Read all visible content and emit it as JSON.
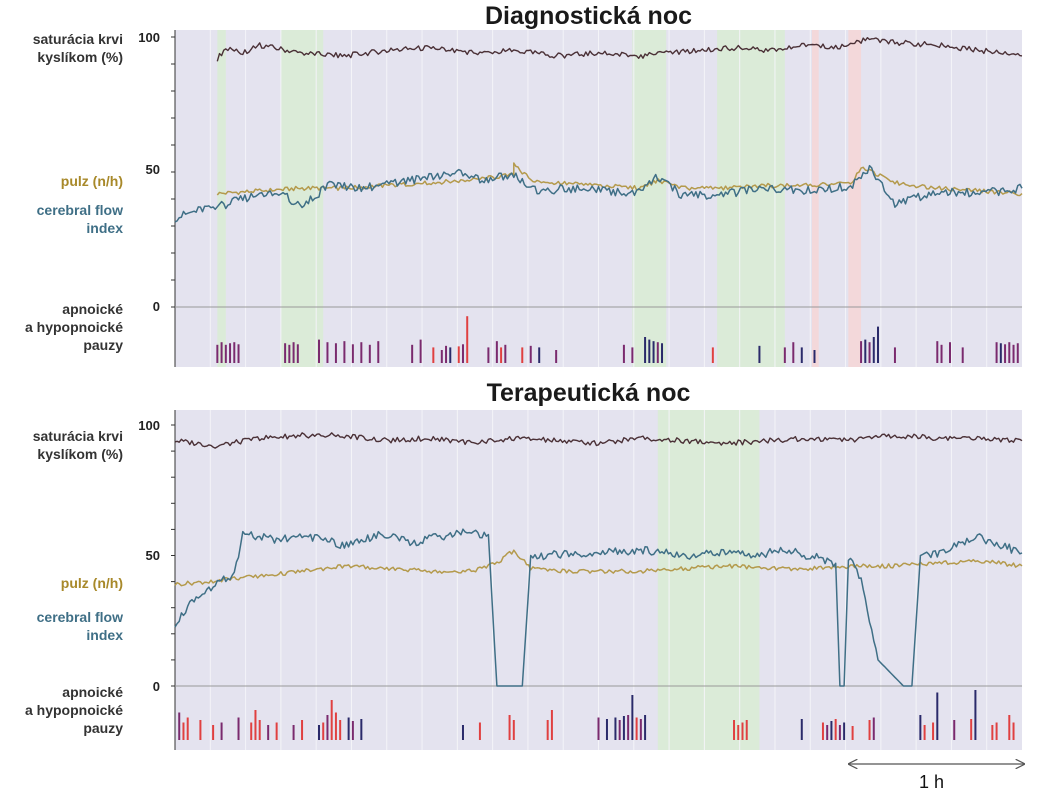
{
  "panels": [
    {
      "id": "diag",
      "title": "Diagnostická noc",
      "spo2_label": [
        "saturácia krvi",
        "kyslíkom (%)"
      ],
      "pulse_label": "pulz (n/h)",
      "cfi_label": [
        "cerebral flow",
        "index"
      ],
      "apnea_label": [
        "apnoické",
        "a hypopnoické",
        "pauzy"
      ],
      "ticks": [
        "100",
        "50",
        "0"
      ]
    },
    {
      "id": "ther",
      "title": "Terapeutická noc",
      "spo2_label": [
        "saturácia krvi",
        "kyslíkom (%)"
      ],
      "pulse_label": "pulz (n/h)",
      "cfi_label": [
        "cerebral flow",
        "index"
      ],
      "apnea_label": [
        "apnoické",
        "a hypopnoické",
        "pauzy"
      ],
      "ticks": [
        "100",
        "50",
        "0"
      ]
    }
  ],
  "scale_bar_label": "1 h",
  "colors": {
    "plot_bg": "#e4e3ef",
    "grid": "#f4f4f8",
    "spo2": "#4a3036",
    "pulse": "#b49a4c",
    "cfi": "#3f6f86",
    "bar_purple": "#7a2a6e",
    "bar_red": "#e04040",
    "bar_navy": "#2a2a6a",
    "band_green": "#d9ecd3",
    "band_red": "#f6d6d6"
  },
  "chart_data": [
    {
      "type": "line",
      "title": "Diagnostická noc",
      "x_unit": "fraction of night (0-1)",
      "y_range": [
        0,
        100
      ],
      "bands": [
        {
          "from": 0.05,
          "to": 0.06,
          "color": "green"
        },
        {
          "from": 0.125,
          "to": 0.175,
          "color": "green"
        },
        {
          "from": 0.54,
          "to": 0.58,
          "color": "green"
        },
        {
          "from": 0.64,
          "to": 0.72,
          "color": "green"
        },
        {
          "from": 0.752,
          "to": 0.76,
          "color": "red"
        },
        {
          "from": 0.795,
          "to": 0.81,
          "color": "red"
        }
      ],
      "series": [
        {
          "name": "saturácia krvi kyslíkom (%)",
          "key": "spo2",
          "x": [
            0.05,
            0.06,
            0.08,
            0.1,
            0.15,
            0.2,
            0.25,
            0.3,
            0.33,
            0.36,
            0.4,
            0.45,
            0.5,
            0.55,
            0.58,
            0.62,
            0.66,
            0.7,
            0.72,
            0.75,
            0.78,
            0.8,
            0.82,
            0.85,
            0.9,
            0.95,
            0.99,
            1.0
          ],
          "y": [
            92,
            96,
            94,
            97,
            94,
            93,
            95,
            96,
            95,
            94,
            95,
            93,
            94,
            93,
            94,
            95,
            96,
            95,
            96,
            97,
            96,
            98,
            99,
            98,
            97,
            95,
            94,
            93
          ]
        },
        {
          "name": "pulz (n/h)",
          "key": "pulse",
          "x": [
            0.05,
            0.1,
            0.15,
            0.2,
            0.25,
            0.3,
            0.35,
            0.4,
            0.4,
            0.42,
            0.45,
            0.5,
            0.55,
            0.57,
            0.6,
            0.65,
            0.7,
            0.75,
            0.8,
            0.81,
            0.85,
            0.9,
            0.95,
            1.0
          ],
          "y": [
            42,
            43,
            44,
            44,
            45,
            46,
            47,
            49,
            53,
            47,
            46,
            45,
            44,
            47,
            44,
            44,
            45,
            45,
            46,
            52,
            46,
            44,
            43,
            42
          ]
        },
        {
          "name": "cerebral flow index",
          "key": "cfi",
          "x": [
            0,
            0.04,
            0.06,
            0.1,
            0.13,
            0.15,
            0.18,
            0.22,
            0.26,
            0.3,
            0.33,
            0.36,
            0.4,
            0.43,
            0.46,
            0.5,
            0.54,
            0.57,
            0.6,
            0.65,
            0.7,
            0.75,
            0.8,
            0.82,
            0.85,
            0.9,
            0.95,
            1.0
          ],
          "y": [
            33,
            37,
            38,
            42,
            41,
            37,
            45,
            44,
            46,
            48,
            50,
            47,
            49,
            42,
            44,
            43,
            42,
            48,
            41,
            42,
            44,
            43,
            45,
            52,
            38,
            43,
            42,
            44
          ]
        }
      ],
      "events": [
        {
          "x": 0.05,
          "h": 0.35,
          "c": "purple"
        },
        {
          "x": 0.055,
          "h": 0.4,
          "c": "purple"
        },
        {
          "x": 0.06,
          "h": 0.35,
          "c": "purple"
        },
        {
          "x": 0.065,
          "h": 0.38,
          "c": "purple"
        },
        {
          "x": 0.07,
          "h": 0.4,
          "c": "purple"
        },
        {
          "x": 0.075,
          "h": 0.36,
          "c": "purple"
        },
        {
          "x": 0.13,
          "h": 0.38,
          "c": "purple"
        },
        {
          "x": 0.135,
          "h": 0.35,
          "c": "purple"
        },
        {
          "x": 0.14,
          "h": 0.4,
          "c": "purple"
        },
        {
          "x": 0.145,
          "h": 0.36,
          "c": "purple"
        },
        {
          "x": 0.17,
          "h": 0.45,
          "c": "purple"
        },
        {
          "x": 0.18,
          "h": 0.4,
          "c": "purple"
        },
        {
          "x": 0.19,
          "h": 0.38,
          "c": "purple"
        },
        {
          "x": 0.2,
          "h": 0.42,
          "c": "purple"
        },
        {
          "x": 0.21,
          "h": 0.36,
          "c": "purple"
        },
        {
          "x": 0.22,
          "h": 0.4,
          "c": "purple"
        },
        {
          "x": 0.23,
          "h": 0.35,
          "c": "purple"
        },
        {
          "x": 0.24,
          "h": 0.42,
          "c": "purple"
        },
        {
          "x": 0.28,
          "h": 0.35,
          "c": "purple"
        },
        {
          "x": 0.29,
          "h": 0.45,
          "c": "purple"
        },
        {
          "x": 0.305,
          "h": 0.3,
          "c": "red"
        },
        {
          "x": 0.315,
          "h": 0.25,
          "c": "purple"
        },
        {
          "x": 0.32,
          "h": 0.33,
          "c": "purple"
        },
        {
          "x": 0.325,
          "h": 0.3,
          "c": "navy"
        },
        {
          "x": 0.335,
          "h": 0.32,
          "c": "red"
        },
        {
          "x": 0.34,
          "h": 0.36,
          "c": "purple"
        },
        {
          "x": 0.345,
          "h": 0.9,
          "c": "red"
        },
        {
          "x": 0.37,
          "h": 0.3,
          "c": "purple"
        },
        {
          "x": 0.38,
          "h": 0.42,
          "c": "purple"
        },
        {
          "x": 0.385,
          "h": 0.3,
          "c": "red"
        },
        {
          "x": 0.39,
          "h": 0.35,
          "c": "purple"
        },
        {
          "x": 0.41,
          "h": 0.3,
          "c": "red"
        },
        {
          "x": 0.42,
          "h": 0.33,
          "c": "purple"
        },
        {
          "x": 0.43,
          "h": 0.3,
          "c": "navy"
        },
        {
          "x": 0.45,
          "h": 0.25,
          "c": "purple"
        },
        {
          "x": 0.53,
          "h": 0.35,
          "c": "purple"
        },
        {
          "x": 0.54,
          "h": 0.3,
          "c": "purple"
        },
        {
          "x": 0.555,
          "h": 0.5,
          "c": "navy"
        },
        {
          "x": 0.56,
          "h": 0.45,
          "c": "navy"
        },
        {
          "x": 0.565,
          "h": 0.42,
          "c": "navy"
        },
        {
          "x": 0.57,
          "h": 0.4,
          "c": "purple"
        },
        {
          "x": 0.575,
          "h": 0.38,
          "c": "navy"
        },
        {
          "x": 0.635,
          "h": 0.3,
          "c": "red"
        },
        {
          "x": 0.69,
          "h": 0.33,
          "c": "navy"
        },
        {
          "x": 0.72,
          "h": 0.3,
          "c": "purple"
        },
        {
          "x": 0.73,
          "h": 0.4,
          "c": "purple"
        },
        {
          "x": 0.74,
          "h": 0.3,
          "c": "navy"
        },
        {
          "x": 0.755,
          "h": 0.25,
          "c": "navy"
        },
        {
          "x": 0.81,
          "h": 0.42,
          "c": "purple"
        },
        {
          "x": 0.815,
          "h": 0.45,
          "c": "navy"
        },
        {
          "x": 0.82,
          "h": 0.4,
          "c": "purple"
        },
        {
          "x": 0.825,
          "h": 0.5,
          "c": "navy"
        },
        {
          "x": 0.83,
          "h": 0.7,
          "c": "navy"
        },
        {
          "x": 0.85,
          "h": 0.3,
          "c": "purple"
        },
        {
          "x": 0.9,
          "h": 0.42,
          "c": "purple"
        },
        {
          "x": 0.905,
          "h": 0.35,
          "c": "purple"
        },
        {
          "x": 0.915,
          "h": 0.4,
          "c": "purple"
        },
        {
          "x": 0.93,
          "h": 0.3,
          "c": "purple"
        },
        {
          "x": 0.97,
          "h": 0.4,
          "c": "purple"
        },
        {
          "x": 0.975,
          "h": 0.38,
          "c": "navy"
        },
        {
          "x": 0.98,
          "h": 0.36,
          "c": "purple"
        },
        {
          "x": 0.985,
          "h": 0.4,
          "c": "purple"
        },
        {
          "x": 0.99,
          "h": 0.35,
          "c": "purple"
        },
        {
          "x": 0.995,
          "h": 0.38,
          "c": "purple"
        }
      ]
    },
    {
      "type": "line",
      "title": "Terapeutická noc",
      "x_unit": "fraction of night (0-1)",
      "y_range": [
        0,
        100
      ],
      "bands": [
        {
          "from": 0.57,
          "to": 0.69,
          "color": "green"
        }
      ],
      "series": [
        {
          "name": "saturácia krvi kyslíkom (%)",
          "key": "spo2",
          "x": [
            0,
            0.05,
            0.1,
            0.15,
            0.2,
            0.25,
            0.3,
            0.35,
            0.4,
            0.45,
            0.5,
            0.55,
            0.6,
            0.65,
            0.7,
            0.75,
            0.8,
            0.85,
            0.9,
            0.95,
            1.0
          ],
          "y": [
            94,
            92,
            95,
            96,
            96,
            94,
            95,
            93,
            95,
            94,
            93,
            95,
            94,
            93,
            94,
            95,
            94,
            96,
            95,
            95,
            94
          ]
        },
        {
          "name": "pulz (n/h)",
          "key": "pulse",
          "x": [
            0,
            0.04,
            0.06,
            0.1,
            0.15,
            0.2,
            0.25,
            0.3,
            0.35,
            0.38,
            0.4,
            0.42,
            0.46,
            0.5,
            0.55,
            0.6,
            0.65,
            0.7,
            0.75,
            0.8,
            0.85,
            0.9,
            0.95,
            1.0
          ],
          "y": [
            39,
            40,
            41,
            42,
            44,
            46,
            45,
            44,
            44,
            47,
            52,
            45,
            44,
            44,
            44,
            45,
            46,
            45,
            45,
            46,
            46,
            47,
            48,
            46
          ]
        },
        {
          "name": "cerebral flow index",
          "key": "cfi",
          "x": [
            0,
            0.02,
            0.05,
            0.07,
            0.08,
            0.12,
            0.16,
            0.2,
            0.24,
            0.28,
            0.34,
            0.37,
            0.38,
            0.39,
            0.4,
            0.405,
            0.41,
            0.42,
            0.44,
            0.48,
            0.55,
            0.6,
            0.64,
            0.68,
            0.72,
            0.76,
            0.78,
            0.785,
            0.79,
            0.795,
            0.8,
            0.81,
            0.83,
            0.86,
            0.87,
            0.88,
            0.9,
            0.95,
            1.0
          ],
          "y": [
            24,
            32,
            40,
            42,
            58,
            56,
            57,
            54,
            58,
            55,
            59,
            58,
            0,
            0,
            0,
            0,
            0,
            49,
            50,
            51,
            52,
            50,
            51,
            50,
            52,
            49,
            47,
            0,
            0,
            47,
            48,
            40,
            10,
            0,
            0,
            49,
            51,
            57,
            51
          ]
        }
      ],
      "events": [
        {
          "x": 0.005,
          "h": 0.55,
          "c": "purple"
        },
        {
          "x": 0.01,
          "h": 0.35,
          "c": "red"
        },
        {
          "x": 0.015,
          "h": 0.45,
          "c": "red"
        },
        {
          "x": 0.03,
          "h": 0.4,
          "c": "red"
        },
        {
          "x": 0.045,
          "h": 0.3,
          "c": "red"
        },
        {
          "x": 0.055,
          "h": 0.35,
          "c": "purple"
        },
        {
          "x": 0.075,
          "h": 0.45,
          "c": "purple"
        },
        {
          "x": 0.09,
          "h": 0.35,
          "c": "red"
        },
        {
          "x": 0.095,
          "h": 0.6,
          "c": "red"
        },
        {
          "x": 0.1,
          "h": 0.4,
          "c": "red"
        },
        {
          "x": 0.11,
          "h": 0.3,
          "c": "purple"
        },
        {
          "x": 0.12,
          "h": 0.35,
          "c": "red"
        },
        {
          "x": 0.14,
          "h": 0.3,
          "c": "purple"
        },
        {
          "x": 0.15,
          "h": 0.4,
          "c": "red"
        },
        {
          "x": 0.17,
          "h": 0.3,
          "c": "navy"
        },
        {
          "x": 0.175,
          "h": 0.35,
          "c": "red"
        },
        {
          "x": 0.18,
          "h": 0.5,
          "c": "purple"
        },
        {
          "x": 0.185,
          "h": 0.8,
          "c": "red"
        },
        {
          "x": 0.19,
          "h": 0.55,
          "c": "red"
        },
        {
          "x": 0.195,
          "h": 0.4,
          "c": "red"
        },
        {
          "x": 0.205,
          "h": 0.45,
          "c": "navy"
        },
        {
          "x": 0.21,
          "h": 0.38,
          "c": "purple"
        },
        {
          "x": 0.22,
          "h": 0.42,
          "c": "navy"
        },
        {
          "x": 0.34,
          "h": 0.3,
          "c": "navy"
        },
        {
          "x": 0.36,
          "h": 0.35,
          "c": "red"
        },
        {
          "x": 0.395,
          "h": 0.5,
          "c": "red"
        },
        {
          "x": 0.4,
          "h": 0.4,
          "c": "red"
        },
        {
          "x": 0.44,
          "h": 0.4,
          "c": "red"
        },
        {
          "x": 0.445,
          "h": 0.6,
          "c": "red"
        },
        {
          "x": 0.5,
          "h": 0.45,
          "c": "purple"
        },
        {
          "x": 0.51,
          "h": 0.42,
          "c": "navy"
        },
        {
          "x": 0.52,
          "h": 0.45,
          "c": "navy"
        },
        {
          "x": 0.525,
          "h": 0.4,
          "c": "purple"
        },
        {
          "x": 0.53,
          "h": 0.48,
          "c": "navy"
        },
        {
          "x": 0.535,
          "h": 0.5,
          "c": "purple"
        },
        {
          "x": 0.54,
          "h": 0.9,
          "c": "navy"
        },
        {
          "x": 0.545,
          "h": 0.45,
          "c": "red"
        },
        {
          "x": 0.55,
          "h": 0.42,
          "c": "purple"
        },
        {
          "x": 0.555,
          "h": 0.5,
          "c": "navy"
        },
        {
          "x": 0.66,
          "h": 0.4,
          "c": "red"
        },
        {
          "x": 0.665,
          "h": 0.3,
          "c": "red"
        },
        {
          "x": 0.67,
          "h": 0.35,
          "c": "red"
        },
        {
          "x": 0.675,
          "h": 0.4,
          "c": "red"
        },
        {
          "x": 0.74,
          "h": 0.42,
          "c": "navy"
        },
        {
          "x": 0.765,
          "h": 0.35,
          "c": "red"
        },
        {
          "x": 0.77,
          "h": 0.3,
          "c": "purple"
        },
        {
          "x": 0.775,
          "h": 0.38,
          "c": "navy"
        },
        {
          "x": 0.78,
          "h": 0.42,
          "c": "red"
        },
        {
          "x": 0.785,
          "h": 0.3,
          "c": "purple"
        },
        {
          "x": 0.79,
          "h": 0.35,
          "c": "navy"
        },
        {
          "x": 0.8,
          "h": 0.28,
          "c": "red"
        },
        {
          "x": 0.82,
          "h": 0.4,
          "c": "red"
        },
        {
          "x": 0.825,
          "h": 0.45,
          "c": "purple"
        },
        {
          "x": 0.88,
          "h": 0.5,
          "c": "navy"
        },
        {
          "x": 0.885,
          "h": 0.3,
          "c": "red"
        },
        {
          "x": 0.895,
          "h": 0.35,
          "c": "red"
        },
        {
          "x": 0.9,
          "h": 0.95,
          "c": "navy"
        },
        {
          "x": 0.92,
          "h": 0.4,
          "c": "purple"
        },
        {
          "x": 0.94,
          "h": 0.42,
          "c": "red"
        },
        {
          "x": 0.945,
          "h": 1.0,
          "c": "navy"
        },
        {
          "x": 0.965,
          "h": 0.3,
          "c": "red"
        },
        {
          "x": 0.97,
          "h": 0.35,
          "c": "red"
        },
        {
          "x": 0.985,
          "h": 0.5,
          "c": "red"
        },
        {
          "x": 0.99,
          "h": 0.35,
          "c": "red"
        }
      ]
    }
  ]
}
